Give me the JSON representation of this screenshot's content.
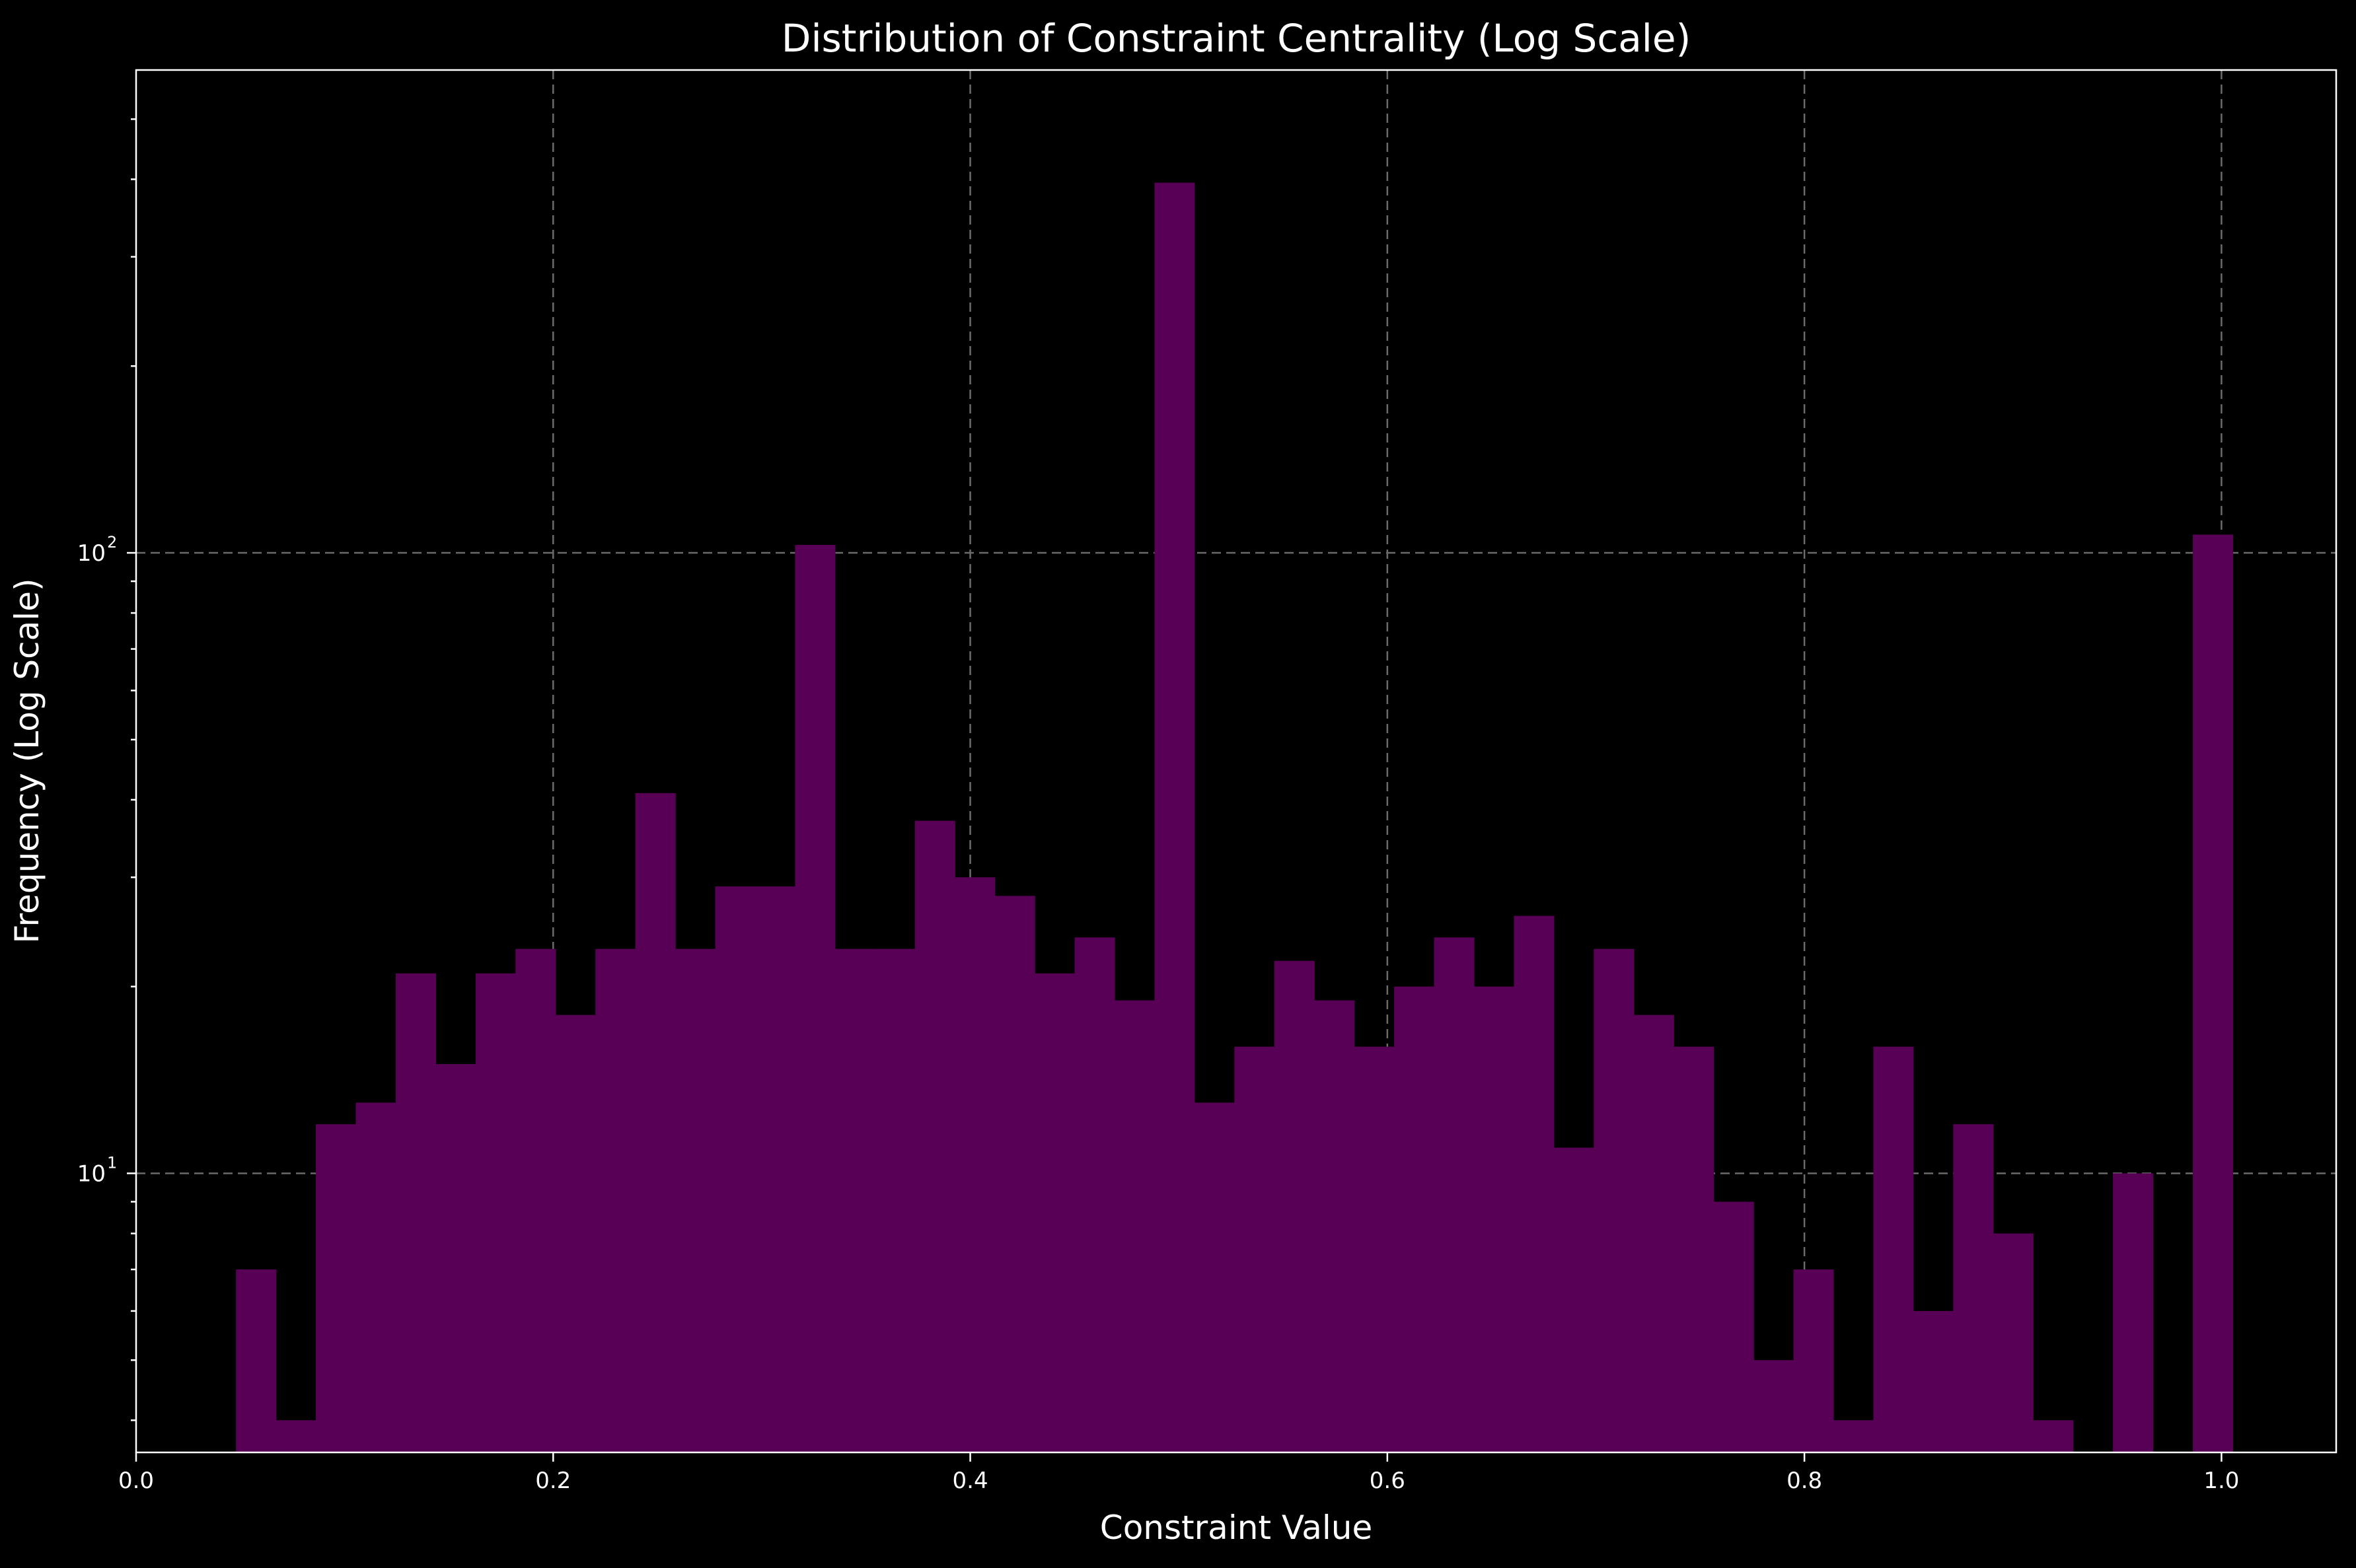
{
  "chart_data": {
    "type": "bar",
    "title": "Distribution of Constraint Centrality (Log Scale)",
    "xlabel": "Constraint Value",
    "ylabel": "Frequency (Log Scale)",
    "xlim": [
      0.0,
      1.055
    ],
    "ylim": [
      3.55,
      600
    ],
    "yscale": "log",
    "grid": true,
    "bar_color": "#570055",
    "x_ticks": [
      {
        "value": 0.0,
        "label": "0.0"
      },
      {
        "value": 0.2,
        "label": "0.2"
      },
      {
        "value": 0.4,
        "label": "0.4"
      },
      {
        "value": 0.6,
        "label": "0.6"
      },
      {
        "value": 0.8,
        "label": "0.8"
      },
      {
        "value": 1.0,
        "label": "1.0"
      }
    ],
    "y_ticks": [
      {
        "value": 10,
        "base": "10",
        "exp": "1"
      },
      {
        "value": 100,
        "base": "10",
        "exp": "2"
      }
    ],
    "y_minor_ticks": [
      4,
      5,
      6,
      7,
      8,
      9,
      20,
      30,
      40,
      50,
      60,
      70,
      80,
      90,
      200,
      300,
      400,
      500
    ],
    "bin_start": 0.0479,
    "bin_width": 0.01915,
    "values": [
      7,
      4,
      12,
      13,
      21,
      15,
      21,
      23,
      18,
      23,
      41,
      23,
      29,
      29,
      103,
      23,
      23,
      37,
      30,
      28,
      21,
      24,
      19,
      395,
      13,
      16,
      22,
      19,
      16,
      20,
      24,
      20,
      26,
      11,
      23,
      18,
      16,
      9,
      5,
      7,
      4,
      16,
      6,
      12,
      8,
      4,
      0,
      10,
      0,
      107
    ]
  }
}
